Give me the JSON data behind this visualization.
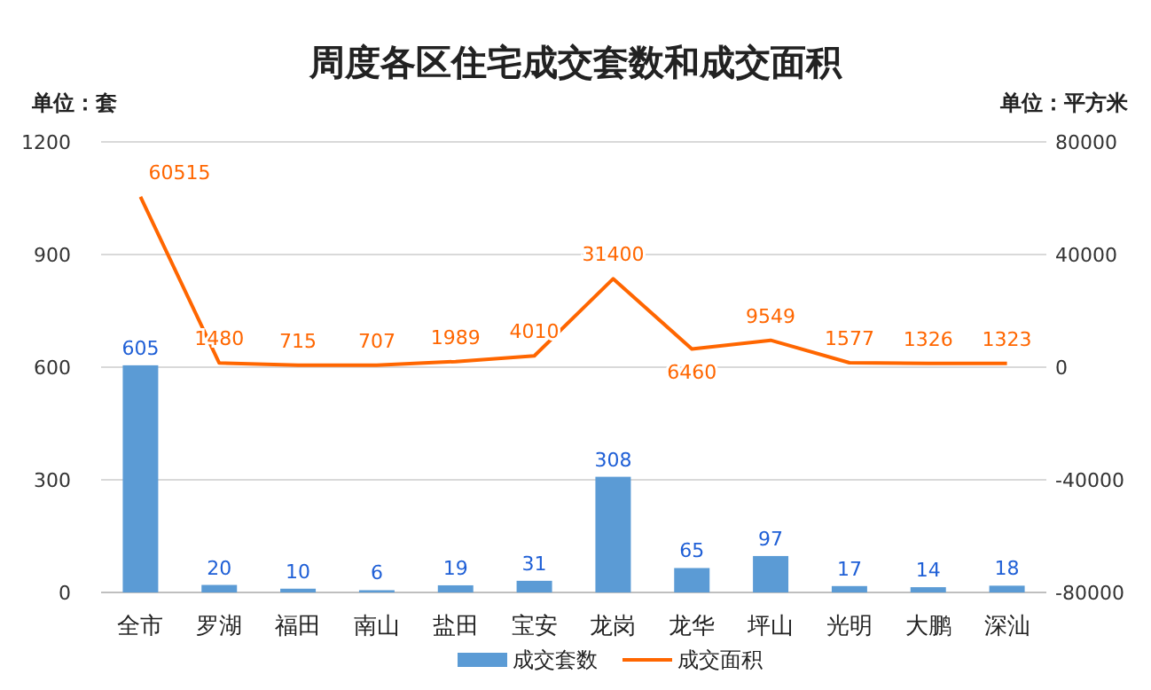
{
  "chart_data": {
    "type": "bar",
    "title": "周度各区住宅成交套数和成交面积",
    "ylabel": "单位：套",
    "y2label": "单位：平方米",
    "categories": [
      "全市",
      "罗湖",
      "福田",
      "南山",
      "盐田",
      "宝安",
      "龙岗",
      "龙华",
      "坪山",
      "光明",
      "大鹏",
      "深汕"
    ],
    "series": [
      {
        "name": "成交套数",
        "color": "#5b9bd5",
        "values": [
          605,
          20,
          10,
          6,
          19,
          31,
          308,
          65,
          97,
          17,
          14,
          18
        ]
      },
      {
        "name": "成交面积",
        "type": "line",
        "axis": "y2",
        "color": "#ff6600",
        "values": [
          60515,
          1480,
          715,
          707,
          1989,
          4010,
          31400,
          6460,
          9549,
          1577,
          1326,
          1323
        ]
      }
    ],
    "ylim": [
      0,
      1200
    ],
    "yticks": [
      0,
      300,
      600,
      900,
      1200
    ],
    "y2lim": [
      -80000,
      80000
    ],
    "y2ticks": [
      -80000,
      -40000,
      0,
      40000,
      80000
    ],
    "grid": "y",
    "legend": "bottom",
    "data_labels": true
  }
}
